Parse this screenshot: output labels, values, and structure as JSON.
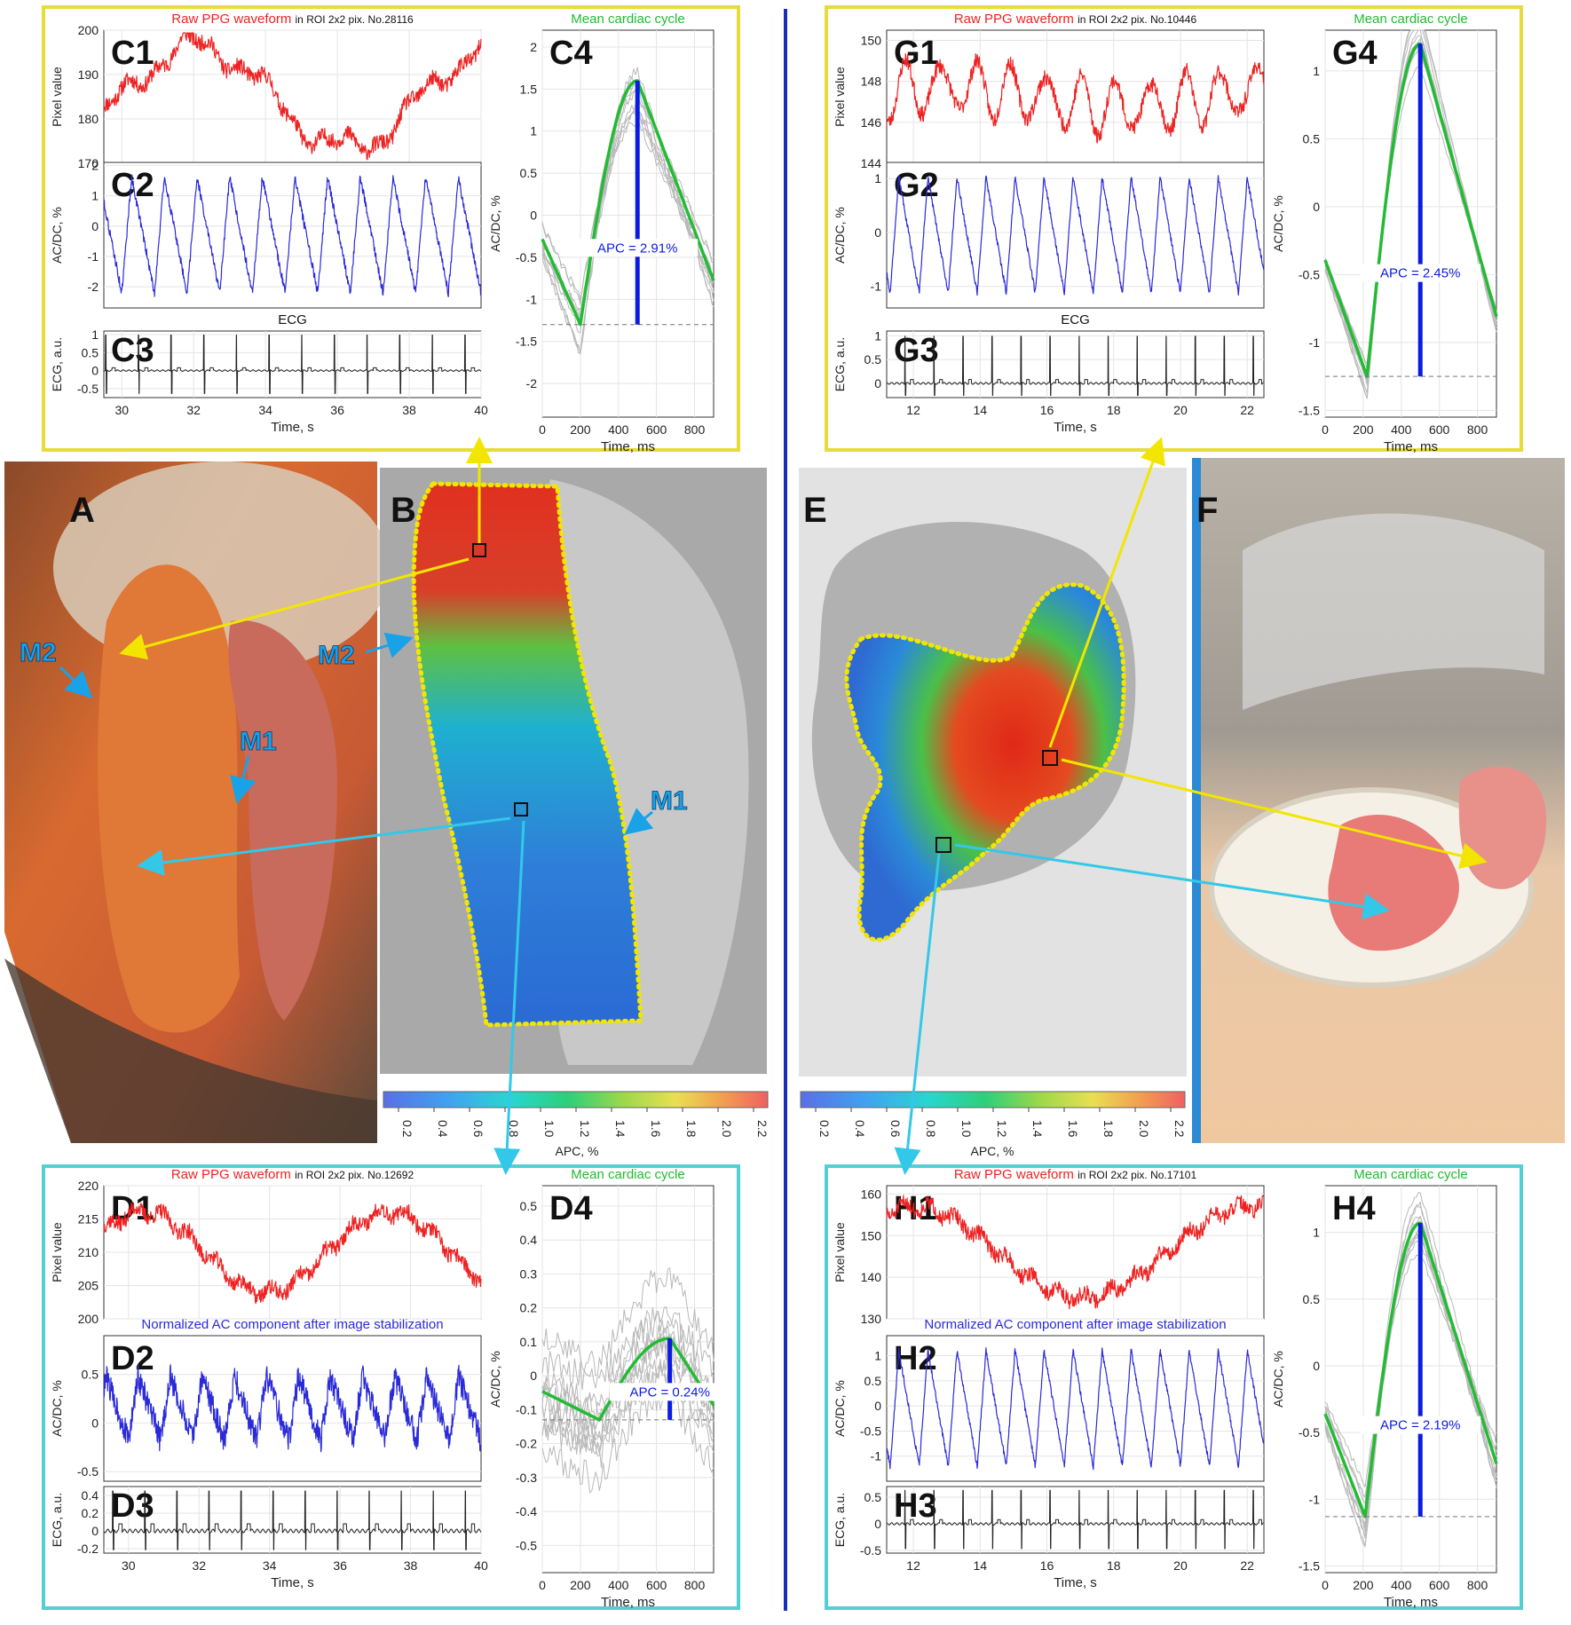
{
  "colors": {
    "raw": "#ee2222",
    "ac": "#2a2ad8",
    "ecg": "#222222",
    "mean": "#22bb33",
    "apc_bar": "#0b1be0",
    "gray_cycle": "#b8b8b8",
    "frame_yellow": "#e6dc3a",
    "frame_cyan": "#55cfd6",
    "divider": "#1a2fb8",
    "contour": "#f2e600",
    "arrow_cyan": "#33c8e8",
    "marker_label": "#19a2e8"
  },
  "header_labels": {
    "raw_prefix": "Raw PPG waveform",
    "raw_suffix_c": "in ROI 2x2 pix. No.28116",
    "raw_suffix_g": "in ROI 2x2 pix. No.10446",
    "raw_suffix_d": "in ROI 2x2 pix. No.12692",
    "raw_suffix_h": "in ROI 2x2 pix. No.17101",
    "normalized": "Normalized AC component after image stabilization",
    "ecg": "ECG",
    "mean_cycle": "Mean cardiac cycle"
  },
  "axis_labels": {
    "pixel": "Pixel value",
    "acdc": "AC/DC, %",
    "ecg": "ECG, a.u.",
    "time_s": "Time, s",
    "time_ms": "Time, ms"
  },
  "colorbar": {
    "ticks": [
      "0.2",
      "0.4",
      "0.6",
      "0.8",
      "1.0",
      "1.2",
      "1.4",
      "1.6",
      "1.8",
      "2.0",
      "2.2"
    ],
    "label_b": "APC, %",
    "label_e": "APC, %"
  },
  "panel_letters": {
    "A": "A",
    "B": "B",
    "E": "E",
    "F": "F"
  },
  "marker_labels": {
    "M1": "M1",
    "M2": "M2"
  },
  "chart_data": [
    {
      "panel": "C1",
      "type": "line",
      "series": [
        {
          "values_desc": "raw PPG"
        }
      ],
      "xlim": [
        29.5,
        40
      ],
      "ylim": [
        170,
        200
      ],
      "x_ticks": [
        "30",
        "32",
        "34",
        "36",
        "38",
        "40"
      ],
      "y_ticks": [
        "170",
        "180",
        "190",
        "200"
      ]
    },
    {
      "panel": "C2",
      "type": "line",
      "xlim": [
        29.5,
        40
      ],
      "ylim": [
        -2.7,
        2.1
      ],
      "y_ticks": [
        "-2",
        "-1",
        "0",
        "1",
        "2"
      ]
    },
    {
      "panel": "C3",
      "type": "line",
      "xlim": [
        29.5,
        40
      ],
      "ylim": [
        -0.75,
        1.1
      ],
      "y_ticks": [
        "-0.5",
        "0",
        "0.5",
        "1"
      ],
      "x_ticks": [
        "30",
        "32",
        "34",
        "36",
        "38",
        "40"
      ]
    },
    {
      "panel": "C4",
      "type": "line",
      "xlim": [
        0,
        900
      ],
      "ylim": [
        -2.4,
        2.2
      ],
      "x_ticks": [
        "0",
        "200",
        "400",
        "600",
        "800"
      ],
      "y_ticks": [
        "-2",
        "-1.5",
        "-1",
        "-0.5",
        "0",
        "0.5",
        "1",
        "1.5",
        "2"
      ],
      "apc_label": "APC = 2.91%",
      "apc": 2.91,
      "peak": [
        500,
        1.6
      ],
      "trough": [
        200,
        -1.3
      ]
    },
    {
      "panel": "G1",
      "type": "line",
      "xlim": [
        11.2,
        22.5
      ],
      "ylim": [
        144,
        150.5
      ],
      "x_ticks": [
        "12",
        "14",
        "16",
        "18",
        "20",
        "22"
      ],
      "y_ticks": [
        "144",
        "146",
        "148",
        "150"
      ]
    },
    {
      "panel": "G2",
      "type": "line",
      "xlim": [
        11.2,
        22.5
      ],
      "ylim": [
        -1.4,
        1.3
      ],
      "y_ticks": [
        "-1",
        "0",
        "1"
      ]
    },
    {
      "panel": "G3",
      "type": "line",
      "xlim": [
        11.2,
        22.5
      ],
      "ylim": [
        -0.3,
        1.1
      ],
      "y_ticks": [
        "0",
        "0.5",
        "1"
      ],
      "x_ticks": [
        "12",
        "14",
        "16",
        "18",
        "20",
        "22"
      ]
    },
    {
      "panel": "G4",
      "type": "line",
      "xlim": [
        0,
        900
      ],
      "ylim": [
        -1.55,
        1.3
      ],
      "x_ticks": [
        "0",
        "200",
        "400",
        "600",
        "800"
      ],
      "y_ticks": [
        "-1.5",
        "-1",
        "-0.5",
        "0",
        "0.5",
        "1"
      ],
      "apc_label": "APC = 2.45%",
      "apc": 2.45,
      "peak": [
        500,
        1.2
      ],
      "trough": [
        220,
        -1.25
      ]
    },
    {
      "panel": "D1",
      "type": "line",
      "xlim": [
        29.3,
        40
      ],
      "ylim": [
        200,
        220
      ],
      "x_ticks": [
        "30",
        "32",
        "34",
        "36",
        "38",
        "40"
      ],
      "y_ticks": [
        "200",
        "205",
        "210",
        "215",
        "220"
      ]
    },
    {
      "panel": "D2",
      "type": "line",
      "xlim": [
        29.3,
        40
      ],
      "ylim": [
        -0.6,
        0.9
      ],
      "y_ticks": [
        "-0.5",
        "0",
        "0.5"
      ]
    },
    {
      "panel": "D3",
      "type": "line",
      "xlim": [
        29.3,
        40
      ],
      "ylim": [
        -0.25,
        0.5
      ],
      "y_ticks": [
        "-0.2",
        "0",
        "0.2",
        "0.4"
      ],
      "x_ticks": [
        "30",
        "32",
        "34",
        "36",
        "38",
        "40"
      ]
    },
    {
      "panel": "D4",
      "type": "line",
      "xlim": [
        0,
        900
      ],
      "ylim": [
        -0.58,
        0.56
      ],
      "x_ticks": [
        "0",
        "200",
        "400",
        "600",
        "800"
      ],
      "y_ticks": [
        "-0.5",
        "-0.4",
        "-0.3",
        "-0.2",
        "-0.1",
        "0",
        "0.1",
        "0.2",
        "0.3",
        "0.4",
        "0.5"
      ],
      "apc_label": "APC = 0.24%",
      "apc": 0.24,
      "peak": [
        670,
        0.11
      ],
      "trough": [
        300,
        -0.13
      ]
    },
    {
      "panel": "H1",
      "type": "line",
      "xlim": [
        11.2,
        22.5
      ],
      "ylim": [
        130,
        162
      ],
      "x_ticks": [
        "12",
        "14",
        "16",
        "18",
        "20",
        "22"
      ],
      "y_ticks": [
        "130",
        "140",
        "150",
        "160"
      ]
    },
    {
      "panel": "H2",
      "type": "line",
      "xlim": [
        11.2,
        22.5
      ],
      "ylim": [
        -1.5,
        1.4
      ],
      "y_ticks": [
        "-1",
        "-0.5",
        "0",
        "0.5",
        "1"
      ]
    },
    {
      "panel": "H3",
      "type": "line",
      "xlim": [
        11.2,
        22.5
      ],
      "ylim": [
        -0.55,
        0.7
      ],
      "y_ticks": [
        "-0.5",
        "0",
        "0.5"
      ],
      "x_ticks": [
        "12",
        "14",
        "16",
        "18",
        "20",
        "22"
      ]
    },
    {
      "panel": "H4",
      "type": "line",
      "xlim": [
        0,
        900
      ],
      "ylim": [
        -1.55,
        1.35
      ],
      "x_ticks": [
        "0",
        "200",
        "400",
        "600",
        "800"
      ],
      "y_ticks": [
        "-1.5",
        "-1",
        "-0.5",
        "0",
        "0.5",
        "1"
      ],
      "apc_label": "APC = 2.19%",
      "apc": 2.19,
      "peak": [
        500,
        1.07
      ],
      "trough": [
        210,
        -1.13
      ]
    }
  ]
}
